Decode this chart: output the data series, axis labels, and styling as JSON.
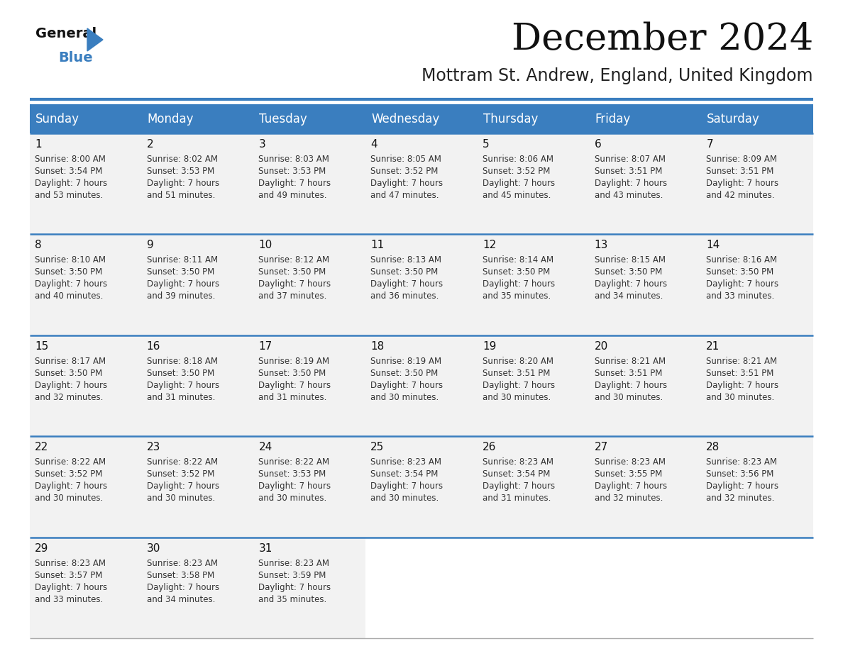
{
  "title": "December 2024",
  "subtitle": "Mottram St. Andrew, England, United Kingdom",
  "header_bg_color": "#3a7ebf",
  "header_text_color": "#ffffff",
  "cell_bg_color": "#f2f2f2",
  "cell_empty_color": "#ffffff",
  "row_line_color": "#3a7ebf",
  "days_of_week": [
    "Sunday",
    "Monday",
    "Tuesday",
    "Wednesday",
    "Thursday",
    "Friday",
    "Saturday"
  ],
  "weeks": [
    [
      {
        "day": 1,
        "sunrise": "8:00 AM",
        "sunset": "3:54 PM",
        "daylight": "7 hours and 53 minutes"
      },
      {
        "day": 2,
        "sunrise": "8:02 AM",
        "sunset": "3:53 PM",
        "daylight": "7 hours and 51 minutes"
      },
      {
        "day": 3,
        "sunrise": "8:03 AM",
        "sunset": "3:53 PM",
        "daylight": "7 hours and 49 minutes"
      },
      {
        "day": 4,
        "sunrise": "8:05 AM",
        "sunset": "3:52 PM",
        "daylight": "7 hours and 47 minutes"
      },
      {
        "day": 5,
        "sunrise": "8:06 AM",
        "sunset": "3:52 PM",
        "daylight": "7 hours and 45 minutes"
      },
      {
        "day": 6,
        "sunrise": "8:07 AM",
        "sunset": "3:51 PM",
        "daylight": "7 hours and 43 minutes"
      },
      {
        "day": 7,
        "sunrise": "8:09 AM",
        "sunset": "3:51 PM",
        "daylight": "7 hours and 42 minutes"
      }
    ],
    [
      {
        "day": 8,
        "sunrise": "8:10 AM",
        "sunset": "3:50 PM",
        "daylight": "7 hours and 40 minutes"
      },
      {
        "day": 9,
        "sunrise": "8:11 AM",
        "sunset": "3:50 PM",
        "daylight": "7 hours and 39 minutes"
      },
      {
        "day": 10,
        "sunrise": "8:12 AM",
        "sunset": "3:50 PM",
        "daylight": "7 hours and 37 minutes"
      },
      {
        "day": 11,
        "sunrise": "8:13 AM",
        "sunset": "3:50 PM",
        "daylight": "7 hours and 36 minutes"
      },
      {
        "day": 12,
        "sunrise": "8:14 AM",
        "sunset": "3:50 PM",
        "daylight": "7 hours and 35 minutes"
      },
      {
        "day": 13,
        "sunrise": "8:15 AM",
        "sunset": "3:50 PM",
        "daylight": "7 hours and 34 minutes"
      },
      {
        "day": 14,
        "sunrise": "8:16 AM",
        "sunset": "3:50 PM",
        "daylight": "7 hours and 33 minutes"
      }
    ],
    [
      {
        "day": 15,
        "sunrise": "8:17 AM",
        "sunset": "3:50 PM",
        "daylight": "7 hours and 32 minutes"
      },
      {
        "day": 16,
        "sunrise": "8:18 AM",
        "sunset": "3:50 PM",
        "daylight": "7 hours and 31 minutes"
      },
      {
        "day": 17,
        "sunrise": "8:19 AM",
        "sunset": "3:50 PM",
        "daylight": "7 hours and 31 minutes"
      },
      {
        "day": 18,
        "sunrise": "8:19 AM",
        "sunset": "3:50 PM",
        "daylight": "7 hours and 30 minutes"
      },
      {
        "day": 19,
        "sunrise": "8:20 AM",
        "sunset": "3:51 PM",
        "daylight": "7 hours and 30 minutes"
      },
      {
        "day": 20,
        "sunrise": "8:21 AM",
        "sunset": "3:51 PM",
        "daylight": "7 hours and 30 minutes"
      },
      {
        "day": 21,
        "sunrise": "8:21 AM",
        "sunset": "3:51 PM",
        "daylight": "7 hours and 30 minutes"
      }
    ],
    [
      {
        "day": 22,
        "sunrise": "8:22 AM",
        "sunset": "3:52 PM",
        "daylight": "7 hours and 30 minutes"
      },
      {
        "day": 23,
        "sunrise": "8:22 AM",
        "sunset": "3:52 PM",
        "daylight": "7 hours and 30 minutes"
      },
      {
        "day": 24,
        "sunrise": "8:22 AM",
        "sunset": "3:53 PM",
        "daylight": "7 hours and 30 minutes"
      },
      {
        "day": 25,
        "sunrise": "8:23 AM",
        "sunset": "3:54 PM",
        "daylight": "7 hours and 30 minutes"
      },
      {
        "day": 26,
        "sunrise": "8:23 AM",
        "sunset": "3:54 PM",
        "daylight": "7 hours and 31 minutes"
      },
      {
        "day": 27,
        "sunrise": "8:23 AM",
        "sunset": "3:55 PM",
        "daylight": "7 hours and 32 minutes"
      },
      {
        "day": 28,
        "sunrise": "8:23 AM",
        "sunset": "3:56 PM",
        "daylight": "7 hours and 32 minutes"
      }
    ],
    [
      {
        "day": 29,
        "sunrise": "8:23 AM",
        "sunset": "3:57 PM",
        "daylight": "7 hours and 33 minutes"
      },
      {
        "day": 30,
        "sunrise": "8:23 AM",
        "sunset": "3:58 PM",
        "daylight": "7 hours and 34 minutes"
      },
      {
        "day": 31,
        "sunrise": "8:23 AM",
        "sunset": "3:59 PM",
        "daylight": "7 hours and 35 minutes"
      },
      null,
      null,
      null,
      null
    ]
  ],
  "title_fontsize": 38,
  "subtitle_fontsize": 17,
  "header_fontsize": 12,
  "day_num_fontsize": 11,
  "cell_text_fontsize": 8.5
}
